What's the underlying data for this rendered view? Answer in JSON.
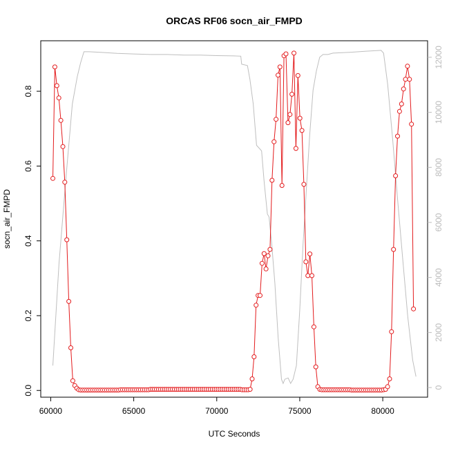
{
  "chart_data": {
    "type": "line",
    "title": "ORCAS RF06 socn_air_FMPD",
    "xlabel": "UTC Seconds",
    "ylabel": "socn_air_FMPD",
    "xlim": [
      59400,
      82700
    ],
    "ylim": [
      -0.018,
      0.935
    ],
    "y2lim": [
      -350,
      12600
    ],
    "x_ticks": [
      60000,
      65000,
      70000,
      75000,
      80000
    ],
    "y_ticks": [
      0.0,
      0.2,
      0.4,
      0.6,
      0.8
    ],
    "y2_ticks": [
      0,
      2000,
      4000,
      6000,
      8000,
      10000,
      12000
    ],
    "grid": false,
    "series": [
      {
        "color": "#e31a1c",
        "marker": "open-circle",
        "axis": "left",
        "points": [
          [
            60130,
            0.567
          ],
          [
            60250,
            0.865
          ],
          [
            60370,
            0.815
          ],
          [
            60490,
            0.782
          ],
          [
            60610,
            0.722
          ],
          [
            60730,
            0.652
          ],
          [
            60850,
            0.557
          ],
          [
            60970,
            0.403
          ],
          [
            61090,
            0.238
          ],
          [
            61210,
            0.114
          ],
          [
            61330,
            0.026
          ],
          [
            61450,
            0.013
          ],
          [
            61570,
            0.006
          ],
          [
            61690,
            0.002
          ],
          [
            61810,
            0.001
          ],
          [
            61930,
            0.001
          ],
          [
            62050,
            0.001
          ],
          [
            62170,
            0.001
          ],
          [
            62290,
            0.001
          ],
          [
            62410,
            0.001
          ],
          [
            62530,
            0.001
          ],
          [
            62650,
            0.001
          ],
          [
            62770,
            0.001
          ],
          [
            62890,
            0.001
          ],
          [
            63010,
            0.001
          ],
          [
            63130,
            0.001
          ],
          [
            63250,
            0.001
          ],
          [
            63370,
            0.001
          ],
          [
            63490,
            0.001
          ],
          [
            63610,
            0.001
          ],
          [
            63730,
            0.001
          ],
          [
            63850,
            0.001
          ],
          [
            63970,
            0.001
          ],
          [
            64090,
            0.001
          ],
          [
            64210,
            0.002
          ],
          [
            64330,
            0.002
          ],
          [
            64450,
            0.002
          ],
          [
            64570,
            0.002
          ],
          [
            64690,
            0.002
          ],
          [
            64810,
            0.002
          ],
          [
            64930,
            0.002
          ],
          [
            65050,
            0.002
          ],
          [
            65170,
            0.002
          ],
          [
            65290,
            0.002
          ],
          [
            65410,
            0.002
          ],
          [
            65530,
            0.002
          ],
          [
            65650,
            0.002
          ],
          [
            65770,
            0.002
          ],
          [
            65890,
            0.002
          ],
          [
            66010,
            0.003
          ],
          [
            66130,
            0.003
          ],
          [
            66250,
            0.003
          ],
          [
            66370,
            0.003
          ],
          [
            66490,
            0.003
          ],
          [
            66610,
            0.003
          ],
          [
            66730,
            0.003
          ],
          [
            66850,
            0.003
          ],
          [
            66970,
            0.003
          ],
          [
            67090,
            0.003
          ],
          [
            67210,
            0.003
          ],
          [
            67330,
            0.003
          ],
          [
            67450,
            0.003
          ],
          [
            67570,
            0.003
          ],
          [
            67690,
            0.003
          ],
          [
            67810,
            0.003
          ],
          [
            67930,
            0.003
          ],
          [
            68050,
            0.003
          ],
          [
            68170,
            0.003
          ],
          [
            68290,
            0.003
          ],
          [
            68410,
            0.003
          ],
          [
            68530,
            0.003
          ],
          [
            68650,
            0.003
          ],
          [
            68770,
            0.003
          ],
          [
            68890,
            0.003
          ],
          [
            69010,
            0.003
          ],
          [
            69130,
            0.003
          ],
          [
            69250,
            0.003
          ],
          [
            69370,
            0.003
          ],
          [
            69490,
            0.003
          ],
          [
            69610,
            0.003
          ],
          [
            69730,
            0.003
          ],
          [
            69850,
            0.003
          ],
          [
            69970,
            0.003
          ],
          [
            70090,
            0.003
          ],
          [
            70210,
            0.003
          ],
          [
            70330,
            0.003
          ],
          [
            70450,
            0.003
          ],
          [
            70570,
            0.003
          ],
          [
            70690,
            0.003
          ],
          [
            70810,
            0.003
          ],
          [
            70930,
            0.003
          ],
          [
            71050,
            0.003
          ],
          [
            71170,
            0.003
          ],
          [
            71290,
            0.003
          ],
          [
            71410,
            0.003
          ],
          [
            71530,
            0.002
          ],
          [
            71650,
            0.002
          ],
          [
            71770,
            0.002
          ],
          [
            71890,
            0.002
          ],
          [
            72010,
            0.003
          ],
          [
            72130,
            0.031
          ],
          [
            72250,
            0.09
          ],
          [
            72370,
            0.228
          ],
          [
            72490,
            0.254
          ],
          [
            72610,
            0.254
          ],
          [
            72730,
            0.34
          ],
          [
            72850,
            0.366
          ],
          [
            72970,
            0.325
          ],
          [
            73090,
            0.36
          ],
          [
            73210,
            0.377
          ],
          [
            73330,
            0.562
          ],
          [
            73450,
            0.665
          ],
          [
            73570,
            0.725
          ],
          [
            73690,
            0.843
          ],
          [
            73810,
            0.865
          ],
          [
            73930,
            0.548
          ],
          [
            74050,
            0.895
          ],
          [
            74170,
            0.9
          ],
          [
            74290,
            0.716
          ],
          [
            74410,
            0.738
          ],
          [
            74530,
            0.792
          ],
          [
            74650,
            0.902
          ],
          [
            74770,
            0.647
          ],
          [
            74890,
            0.842
          ],
          [
            75010,
            0.728
          ],
          [
            75130,
            0.695
          ],
          [
            75250,
            0.551
          ],
          [
            75370,
            0.344
          ],
          [
            75490,
            0.307
          ],
          [
            75610,
            0.365
          ],
          [
            75730,
            0.307
          ],
          [
            75850,
            0.17
          ],
          [
            75970,
            0.063
          ],
          [
            76090,
            0.01
          ],
          [
            76210,
            0.003
          ],
          [
            76330,
            0.002
          ],
          [
            76450,
            0.002
          ],
          [
            76570,
            0.002
          ],
          [
            76690,
            0.002
          ],
          [
            76810,
            0.002
          ],
          [
            76930,
            0.002
          ],
          [
            77050,
            0.002
          ],
          [
            77170,
            0.002
          ],
          [
            77290,
            0.002
          ],
          [
            77410,
            0.002
          ],
          [
            77530,
            0.002
          ],
          [
            77650,
            0.002
          ],
          [
            77770,
            0.002
          ],
          [
            77890,
            0.002
          ],
          [
            78010,
            0.002
          ],
          [
            78130,
            0.001
          ],
          [
            78250,
            0.001
          ],
          [
            78370,
            0.001
          ],
          [
            78490,
            0.001
          ],
          [
            78610,
            0.001
          ],
          [
            78730,
            0.001
          ],
          [
            78850,
            0.001
          ],
          [
            78970,
            0.001
          ],
          [
            79090,
            0.001
          ],
          [
            79210,
            0.001
          ],
          [
            79330,
            0.001
          ],
          [
            79450,
            0.001
          ],
          [
            79570,
            0.001
          ],
          [
            79690,
            0.001
          ],
          [
            79810,
            0.001
          ],
          [
            79930,
            0.001
          ],
          [
            80050,
            0.002
          ],
          [
            80170,
            0.003
          ],
          [
            80290,
            0.01
          ],
          [
            80410,
            0.031
          ],
          [
            80530,
            0.157
          ],
          [
            80650,
            0.377
          ],
          [
            80770,
            0.574
          ],
          [
            80890,
            0.68
          ],
          [
            81010,
            0.746
          ],
          [
            81130,
            0.766
          ],
          [
            81250,
            0.806
          ],
          [
            81370,
            0.832
          ],
          [
            81490,
            0.867
          ],
          [
            81610,
            0.832
          ],
          [
            81730,
            0.712
          ],
          [
            81850,
            0.218
          ]
        ]
      },
      {
        "color": "#bebebe",
        "axis": "right",
        "points": [
          [
            60130,
            800
          ],
          [
            60500,
            4500
          ],
          [
            60900,
            7500
          ],
          [
            61300,
            10300
          ],
          [
            61600,
            11300
          ],
          [
            61800,
            11800
          ],
          [
            62000,
            12200
          ],
          [
            62300,
            12200
          ],
          [
            63000,
            12180
          ],
          [
            64000,
            12140
          ],
          [
            65000,
            12120
          ],
          [
            66000,
            12100
          ],
          [
            67000,
            12100
          ],
          [
            68000,
            12080
          ],
          [
            69000,
            12080
          ],
          [
            70000,
            12060
          ],
          [
            71000,
            12050
          ],
          [
            71450,
            12040
          ],
          [
            71500,
            11750
          ],
          [
            71850,
            11700
          ],
          [
            72000,
            11200
          ],
          [
            72200,
            10300
          ],
          [
            72400,
            8800
          ],
          [
            72550,
            8700
          ],
          [
            72700,
            8600
          ],
          [
            72850,
            7500
          ],
          [
            73050,
            6300
          ],
          [
            73150,
            6200
          ],
          [
            73300,
            5300
          ],
          [
            73500,
            3800
          ],
          [
            73700,
            1800
          ],
          [
            73900,
            300
          ],
          [
            74000,
            150
          ],
          [
            74100,
            300
          ],
          [
            74300,
            350
          ],
          [
            74450,
            150
          ],
          [
            74600,
            300
          ],
          [
            74800,
            800
          ],
          [
            75000,
            2800
          ],
          [
            75200,
            5200
          ],
          [
            75400,
            7200
          ],
          [
            75600,
            9200
          ],
          [
            75800,
            10800
          ],
          [
            76000,
            11500
          ],
          [
            76200,
            12000
          ],
          [
            76400,
            12100
          ],
          [
            76700,
            12100
          ],
          [
            77000,
            12150
          ],
          [
            78000,
            12180
          ],
          [
            79000,
            12220
          ],
          [
            79900,
            12250
          ],
          [
            80050,
            12150
          ],
          [
            80300,
            11000
          ],
          [
            80600,
            9000
          ],
          [
            80900,
            6800
          ],
          [
            81200,
            4700
          ],
          [
            81500,
            2600
          ],
          [
            81800,
            1000
          ],
          [
            82000,
            400
          ]
        ]
      }
    ]
  }
}
